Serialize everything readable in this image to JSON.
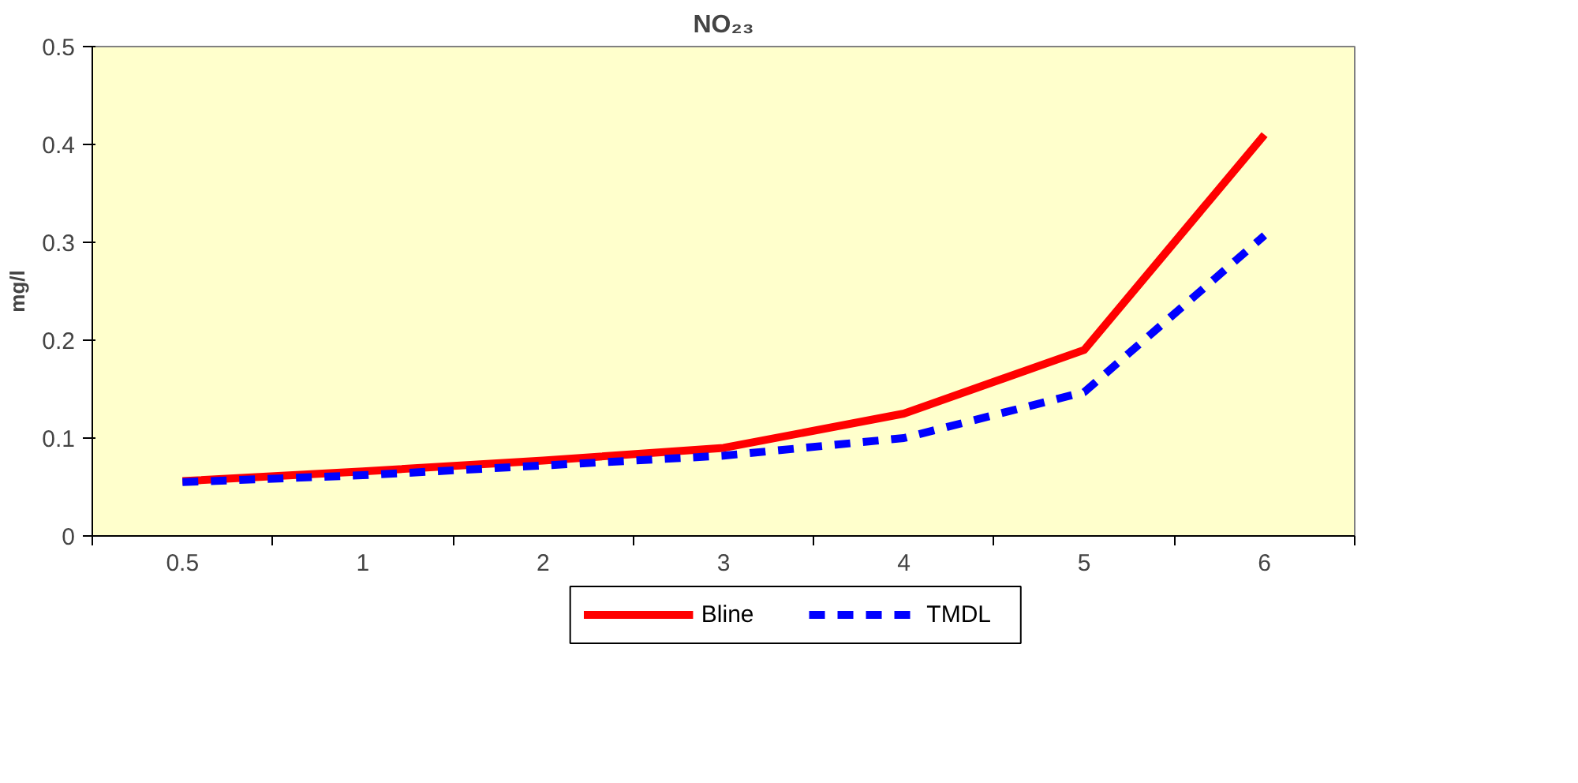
{
  "chart_data": {
    "type": "line",
    "title": "NO₂₃",
    "ylabel": "mg/l",
    "categories": [
      "0.5",
      "1",
      "2",
      "3",
      "4",
      "5",
      "6"
    ],
    "series": [
      {
        "name": "Bline",
        "color": "#ff0000",
        "line_style": "solid",
        "values": [
          0.056,
          0.066,
          0.077,
          0.09,
          0.125,
          0.19,
          0.41
        ]
      },
      {
        "name": "TMDL",
        "color": "#0000ff",
        "line_style": "dashed",
        "values": [
          0.055,
          0.062,
          0.072,
          0.082,
          0.1,
          0.147,
          0.307
        ]
      }
    ],
    "ylim": [
      0,
      0.5
    ],
    "yticks": [
      0,
      0.1,
      0.2,
      0.3,
      0.4,
      0.5
    ],
    "grid": false,
    "legend": "bottom",
    "marker": "none"
  }
}
